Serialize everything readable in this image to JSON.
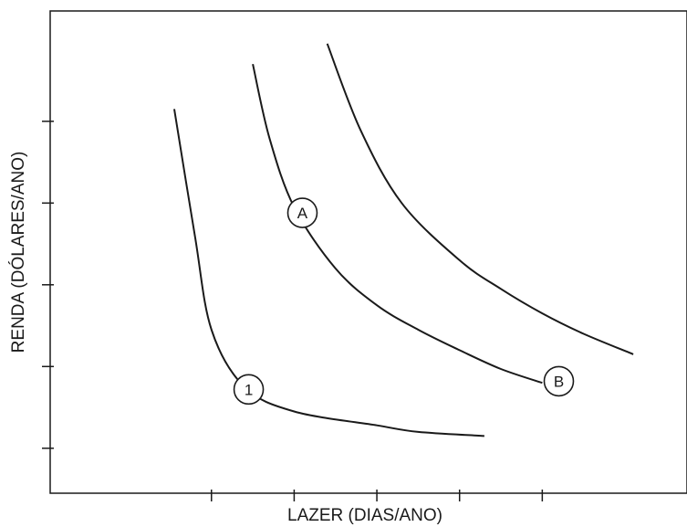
{
  "chart_data": {
    "type": "line",
    "title": "",
    "xlabel": "LAZER (DIAS/ANO)",
    "ylabel": "RENDA (DÓLARES/ANO)",
    "x_ticks": 5,
    "y_ticks": 5,
    "tick_labels_shown": false,
    "grid": false,
    "series": [
      {
        "values": [
          [
            0.55,
            4.15
          ],
          [
            0.8,
            2.6
          ],
          [
            1.0,
            1.45
          ],
          [
            1.4,
            0.75
          ],
          [
            2.0,
            0.45
          ],
          [
            3.0,
            0.28
          ],
          [
            3.5,
            0.2
          ],
          [
            4.3,
            0.15
          ]
        ]
      },
      {
        "values": [
          [
            1.5,
            4.7
          ],
          [
            1.7,
            3.8
          ],
          [
            2.0,
            2.95
          ],
          [
            2.5,
            2.2
          ],
          [
            3.0,
            1.75
          ],
          [
            3.5,
            1.45
          ],
          [
            4.0,
            1.2
          ],
          [
            4.5,
            0.97
          ],
          [
            5.0,
            0.8
          ]
        ]
      },
      {
        "values": [
          [
            2.4,
            4.95
          ],
          [
            2.8,
            3.9
          ],
          [
            3.3,
            3.0
          ],
          [
            4.0,
            2.3
          ],
          [
            4.5,
            1.95
          ],
          [
            5.0,
            1.65
          ],
          [
            5.5,
            1.4
          ],
          [
            6.1,
            1.15
          ]
        ]
      }
    ],
    "markers": [
      {
        "label": "1",
        "x": 1.45,
        "y": 0.72
      },
      {
        "label": "A",
        "x": 2.1,
        "y": 2.88
      },
      {
        "label": "B",
        "x": 5.2,
        "y": 0.82
      }
    ],
    "xlim": [
      -0.95,
      6.75
    ],
    "ylim": [
      -0.55,
      5.35
    ]
  }
}
